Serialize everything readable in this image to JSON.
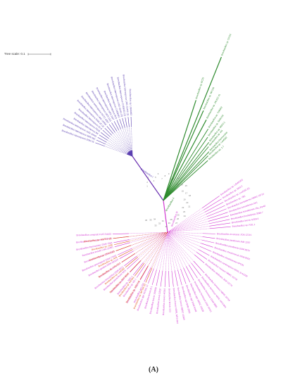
{
  "scale": {
    "label": "Tree scale: 0.1"
  },
  "caption": "(A)",
  "colors": {
    "purple_clade": "#5b3fb0",
    "green_clade": "#2e8b2e",
    "magenta_clade": "#d23ad2",
    "orange_clade": "#e0571f",
    "backbone": "#6a2fb0"
  },
  "clade_labels": {
    "purple": "Brevibacillus I",
    "green": "Brevibacillus II",
    "magenta": "Brevibacillus III"
  },
  "purple_taxa": [
    "Brevibacillus laterosporus DSM 25",
    "Brevibacillus laterosporus NRS 590",
    "Brevibacillus laterosporus LMG 15441",
    "Brevibacillus laterosporus B9",
    "Brevibacillus laterosporus PE36",
    "Brevibacillus laterosporus GI-9",
    "Brevibacillus laterosporus DSM 25 (2)",
    "Brevibacillus laterosporus LMG 16000",
    "Brevibacillus laterosporus NCTC 6357",
    "Brevibacillus laterosporus NRS 1111",
    "Brevibacillus laterosporus NRS 1647",
    "Brevibacillus laterosporus BL8",
    "Brevibacillus laterosporus CCEB342",
    "Brevibacillus laterosporus LMG 15441 (2)",
    "Brevibacillus laterosporus CCEB342 (2)",
    "Brevibacillus laterosporus LMG 15441 (3)",
    "Brevibacillus sp. UBA6483"
  ],
  "green_taxa": [
    "Brevibacillus sp. CF112",
    "Brevibacillus sp. BC25",
    "Brevibacillus sp. WF146",
    "Brevibacillus sp. JNUCC 41",
    "Brevibacillus sp. 7WMA2",
    "Brevibacillus sp. SKDU10",
    "Brevibacillus sp. NSP2.1",
    "Brevibacillus sp. AG",
    "Brevibacillus thermoruber",
    "Brevibacillus sp. Leaf182",
    "Brevibacillus sp. 1-7"
  ],
  "magenta_upper_taxa": [
    "Brevibacillus sp. LEMMJ03",
    "Brevibacillus sp. MS2.2",
    "Brevibacillus sp. Leaf182 (2)",
    "Brevibacillus sp. YB1",
    "Brevibacillus borstelensis NBRC 15714",
    "Brevibacillus borstelensis AK1",
    "Brevibacillus borstelensis cifa_chp40",
    "Brevibacillus borstelensis 3096-7",
    "Brevibacillus brevis GZDF3",
    "Brevibacillus sp. RS1.1"
  ],
  "magenta_mid_taxa": [
    "Brevibacillus invocatus JCM 12215",
    "Brevibacillus parabrevis IAM 1267",
    "Brevibacillus parabrevis DSM 8376",
    "Brevibacillus choshinensis DSM 8552",
    "Brevibacillus choshinensis HPD31",
    "Brevibacillus centrosporus NRRL B-41339",
    "Brevibacillus reuszeri NBRC 15719",
    "Brevibacillus nitrificans JCM 15774"
  ],
  "magenta_lower_taxa": [
    "Brevibacillus formosus NBRC 15716",
    "Brevibacillus formosus NRRL NRS-863",
    "Brevibacillus formosus DSM 9885",
    "Brevibacillus formosus LMG 16101",
    "Brevibacillus agri NBRC 15538",
    "Brevibacillus agri DSM 6348",
    "Brevibacillus agri BAB-2500",
    "Brevibacillus brevis NBRC 15304",
    "Brevibacillus brevis NRRL NRS-604",
    "Brevibacillus brevis X23",
    "Brevibacillus brevis HK544",
    "Brevibacillus brevis DZQ7",
    "Brevibacillus brevis 100599",
    "Brevibacillus brevis B-1",
    "Brevibacillus agri SCSIO 12",
    "Brevibacillus agri 12A",
    "Brevibacillus sp. FJAT-10",
    "Brevibacillus sp. M2.1",
    "Brevibacillus sp. NRS 1",
    "Brevibacillus porteri KCTC",
    "Brevibacillus panacihumi W25",
    "Brevibacillus limnophilus DSM 6472",
    "Brevibacillus fluminis CJ7",
    "Brevibacillus gelatini DSM 100115",
    "Brevibacillus ginsengisoli DSM 17610",
    "Brevibacillus migulae DSM 3364",
    "Brevibacillus levickii LMG 22481",
    "Brevibacillus thermoruber DSM 7064",
    "Brevibacillus aydinogluensis PDF25",
    "Brevibacillus composti FJAT-54423"
  ],
  "orange_taxa": [
    "Brevibacillus sp. WF146 (2)",
    "Brevibacillus sp. HD1.4-B",
    "Brevibacillus sp. MCWH",
    "Brevibacillus sp. SYP-B805",
    "Brevibacillus sp. Leaf280",
    "Brevibacillus sp. 179-C8.2",
    "Brevibacillus sp. AF8",
    "Brevibacillus sp. CF112 (2)",
    "Brevibacillus sp. OSE",
    "Brevibacillus sp. NSP2.1 (2)"
  ],
  "node_numbers": [
    "1",
    "2",
    "3",
    "4",
    "5",
    "6",
    "7",
    "8",
    "9",
    "10",
    "11",
    "12",
    "13",
    "14",
    "15",
    "16",
    "17",
    "18",
    "19",
    "20",
    "21",
    "22",
    "23",
    "24",
    "25",
    "26",
    "27",
    "28",
    "29",
    "30",
    "31",
    "32",
    "33",
    "34",
    "35",
    "36"
  ]
}
